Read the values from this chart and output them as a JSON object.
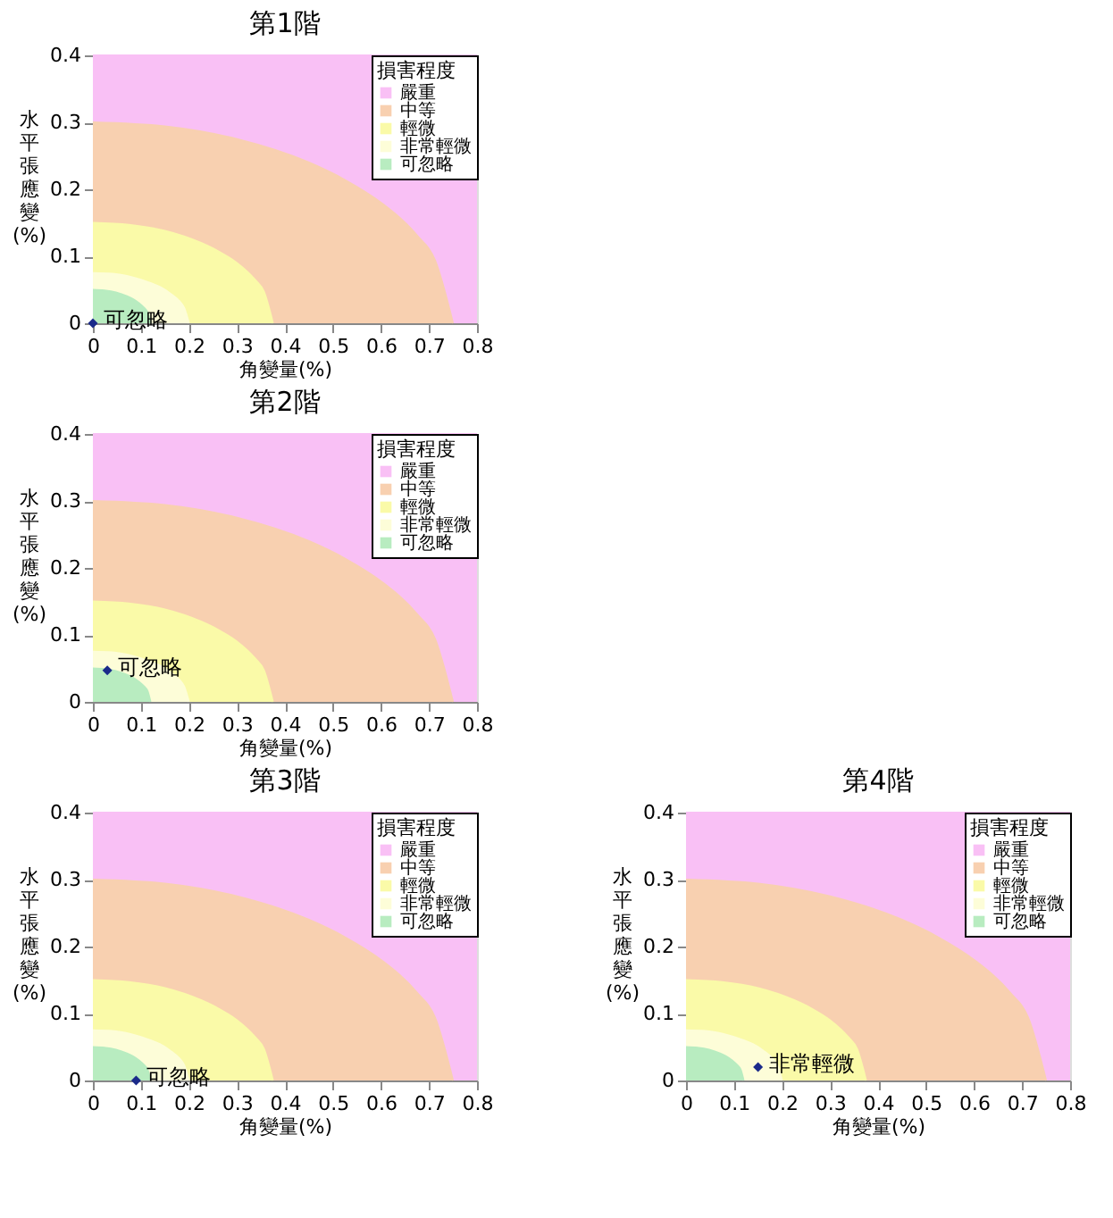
{
  "chart_data": [
    {
      "type": "area",
      "title": "第1階",
      "xlabel": "角變量(%)",
      "ylabel": "水平張應變(%)",
      "legend_title": "損害程度",
      "legend": "top right",
      "xlim": [
        0,
        0.8
      ],
      "ylim": [
        0,
        0.4
      ],
      "xticks": [
        0,
        0.1,
        0.2,
        0.3,
        0.4,
        0.5,
        0.6,
        0.7,
        0.8
      ],
      "yticks": [
        0,
        0.1,
        0.2,
        0.3,
        0.4
      ],
      "series": [
        {
          "name": "嚴重",
          "color": "#f9c0f5",
          "x": [
            0,
            0.8
          ],
          "values": [
            0.4,
            0.4
          ]
        },
        {
          "name": "中等",
          "color": "#f8d0b0",
          "x": [
            0,
            0.15,
            0.3,
            0.45,
            0.525,
            0.6,
            0.675,
            0.7125,
            0.75
          ],
          "values": [
            0.3,
            0.294,
            0.275,
            0.24,
            0.214,
            0.18,
            0.131,
            0.094,
            0
          ]
        },
        {
          "name": "輕微",
          "color": "#fafaa8",
          "x": [
            0,
            0.075,
            0.15,
            0.225,
            0.2625,
            0.3,
            0.3375,
            0.35625,
            0.375
          ],
          "values": [
            0.15,
            0.147,
            0.138,
            0.12,
            0.107,
            0.09,
            0.065,
            0.047,
            0
          ]
        },
        {
          "name": "非常輕微",
          "color": "#fdfdd8",
          "x": [
            0,
            0.04,
            0.08,
            0.12,
            0.14,
            0.16,
            0.18,
            0.19,
            0.2
          ],
          "values": [
            0.075,
            0.074,
            0.069,
            0.06,
            0.054,
            0.045,
            0.033,
            0.023,
            0
          ]
        },
        {
          "name": "可忽略",
          "color": "#b8ecc0",
          "x": [
            0,
            0.024,
            0.048,
            0.072,
            0.084,
            0.096,
            0.108,
            0.114,
            0.12
          ],
          "values": [
            0.05,
            0.049,
            0.046,
            0.04,
            0.036,
            0.03,
            0.022,
            0.016,
            0
          ]
        },
        {
          "type": "scatter",
          "marker": "diamond",
          "color": "#1a2a8a",
          "x": [
            0
          ],
          "values": [
            0
          ]
        }
      ],
      "annotations": [
        {
          "text": "可忽略",
          "x": 0,
          "y": 0
        }
      ]
    },
    {
      "type": "area",
      "title": "第2階",
      "xlabel": "角變量(%)",
      "ylabel": "水平張應變(%)",
      "legend_title": "損害程度",
      "legend": "top right",
      "xlim": [
        0,
        0.8
      ],
      "ylim": [
        0,
        0.4
      ],
      "xticks": [
        0,
        0.1,
        0.2,
        0.3,
        0.4,
        0.5,
        0.6,
        0.7,
        0.8
      ],
      "yticks": [
        0,
        0.1,
        0.2,
        0.3,
        0.4
      ],
      "series": [
        {
          "name": "嚴重",
          "color": "#f9c0f5",
          "x": [
            0,
            0.8
          ],
          "values": [
            0.4,
            0.4
          ]
        },
        {
          "name": "中等",
          "color": "#f8d0b0",
          "x": [
            0,
            0.15,
            0.3,
            0.45,
            0.525,
            0.6,
            0.675,
            0.7125,
            0.75
          ],
          "values": [
            0.3,
            0.294,
            0.275,
            0.24,
            0.214,
            0.18,
            0.131,
            0.094,
            0
          ]
        },
        {
          "name": "輕微",
          "color": "#fafaa8",
          "x": [
            0,
            0.075,
            0.15,
            0.225,
            0.2625,
            0.3,
            0.3375,
            0.35625,
            0.375
          ],
          "values": [
            0.15,
            0.147,
            0.138,
            0.12,
            0.107,
            0.09,
            0.065,
            0.047,
            0
          ]
        },
        {
          "name": "非常輕微",
          "color": "#fdfdd8",
          "x": [
            0,
            0.04,
            0.08,
            0.12,
            0.14,
            0.16,
            0.18,
            0.19,
            0.2
          ],
          "values": [
            0.075,
            0.074,
            0.069,
            0.06,
            0.054,
            0.045,
            0.033,
            0.023,
            0
          ]
        },
        {
          "name": "可忽略",
          "color": "#b8ecc0",
          "x": [
            0,
            0.024,
            0.048,
            0.072,
            0.084,
            0.096,
            0.108,
            0.114,
            0.12
          ],
          "values": [
            0.05,
            0.049,
            0.046,
            0.04,
            0.036,
            0.03,
            0.022,
            0.016,
            0
          ]
        },
        {
          "type": "scatter",
          "marker": "diamond",
          "color": "#1a2a8a",
          "x": [
            0.03
          ],
          "values": [
            0.047
          ]
        }
      ],
      "annotations": [
        {
          "text": "可忽略",
          "x": 0.03,
          "y": 0.047
        }
      ]
    },
    {
      "type": "area",
      "title": "第3階",
      "xlabel": "角變量(%)",
      "ylabel": "水平張應變(%)",
      "legend_title": "損害程度",
      "legend": "top right",
      "xlim": [
        0,
        0.8
      ],
      "ylim": [
        0,
        0.4
      ],
      "xticks": [
        0,
        0.1,
        0.2,
        0.3,
        0.4,
        0.5,
        0.6,
        0.7,
        0.8
      ],
      "yticks": [
        0,
        0.1,
        0.2,
        0.3,
        0.4
      ],
      "series": [
        {
          "name": "嚴重",
          "color": "#f9c0f5",
          "x": [
            0,
            0.8
          ],
          "values": [
            0.4,
            0.4
          ]
        },
        {
          "name": "中等",
          "color": "#f8d0b0",
          "x": [
            0,
            0.15,
            0.3,
            0.45,
            0.525,
            0.6,
            0.675,
            0.7125,
            0.75
          ],
          "values": [
            0.3,
            0.294,
            0.275,
            0.24,
            0.214,
            0.18,
            0.131,
            0.094,
            0
          ]
        },
        {
          "name": "輕微",
          "color": "#fafaa8",
          "x": [
            0,
            0.075,
            0.15,
            0.225,
            0.2625,
            0.3,
            0.3375,
            0.35625,
            0.375
          ],
          "values": [
            0.15,
            0.147,
            0.138,
            0.12,
            0.107,
            0.09,
            0.065,
            0.047,
            0
          ]
        },
        {
          "name": "非常輕微",
          "color": "#fdfdd8",
          "x": [
            0,
            0.04,
            0.08,
            0.12,
            0.14,
            0.16,
            0.18,
            0.19,
            0.2
          ],
          "values": [
            0.075,
            0.074,
            0.069,
            0.06,
            0.054,
            0.045,
            0.033,
            0.023,
            0
          ]
        },
        {
          "name": "可忽略",
          "color": "#b8ecc0",
          "x": [
            0,
            0.024,
            0.048,
            0.072,
            0.084,
            0.096,
            0.108,
            0.114,
            0.12
          ],
          "values": [
            0.05,
            0.049,
            0.046,
            0.04,
            0.036,
            0.03,
            0.022,
            0.016,
            0
          ]
        },
        {
          "type": "scatter",
          "marker": "diamond",
          "color": "#1a2a8a",
          "x": [
            0.09
          ],
          "values": [
            0
          ]
        }
      ],
      "annotations": [
        {
          "text": "可忽略",
          "x": 0.09,
          "y": 0
        }
      ]
    },
    {
      "type": "area",
      "title": "第4階",
      "xlabel": "角變量(%)",
      "ylabel": "水平張應變(%)",
      "legend_title": "損害程度",
      "legend": "top right",
      "xlim": [
        0,
        0.8
      ],
      "ylim": [
        0,
        0.4
      ],
      "xticks": [
        0,
        0.1,
        0.2,
        0.3,
        0.4,
        0.5,
        0.6,
        0.7,
        0.8
      ],
      "yticks": [
        0,
        0.1,
        0.2,
        0.3,
        0.4
      ],
      "series": [
        {
          "name": "嚴重",
          "color": "#f9c0f5",
          "x": [
            0,
            0.8
          ],
          "values": [
            0.4,
            0.4
          ]
        },
        {
          "name": "中等",
          "color": "#f8d0b0",
          "x": [
            0,
            0.15,
            0.3,
            0.45,
            0.525,
            0.6,
            0.675,
            0.7125,
            0.75
          ],
          "values": [
            0.3,
            0.294,
            0.275,
            0.24,
            0.214,
            0.18,
            0.131,
            0.094,
            0
          ]
        },
        {
          "name": "輕微",
          "color": "#fafaa8",
          "x": [
            0,
            0.075,
            0.15,
            0.225,
            0.2625,
            0.3,
            0.3375,
            0.35625,
            0.375
          ],
          "values": [
            0.15,
            0.147,
            0.138,
            0.12,
            0.107,
            0.09,
            0.065,
            0.047,
            0
          ]
        },
        {
          "name": "非常輕微",
          "color": "#fdfdd8",
          "x": [
            0,
            0.04,
            0.08,
            0.12,
            0.14,
            0.16,
            0.18,
            0.19,
            0.2
          ],
          "values": [
            0.075,
            0.074,
            0.069,
            0.06,
            0.054,
            0.045,
            0.033,
            0.023,
            0
          ]
        },
        {
          "name": "可忽略",
          "color": "#b8ecc0",
          "x": [
            0,
            0.024,
            0.048,
            0.072,
            0.084,
            0.096,
            0.108,
            0.114,
            0.12
          ],
          "values": [
            0.05,
            0.049,
            0.046,
            0.04,
            0.036,
            0.03,
            0.022,
            0.016,
            0
          ]
        },
        {
          "type": "scatter",
          "marker": "diamond",
          "color": "#1a2a8a",
          "x": [
            0.15
          ],
          "values": [
            0.02
          ]
        }
      ],
      "annotations": [
        {
          "text": "非常輕微",
          "x": 0.15,
          "y": 0.02
        }
      ]
    }
  ]
}
